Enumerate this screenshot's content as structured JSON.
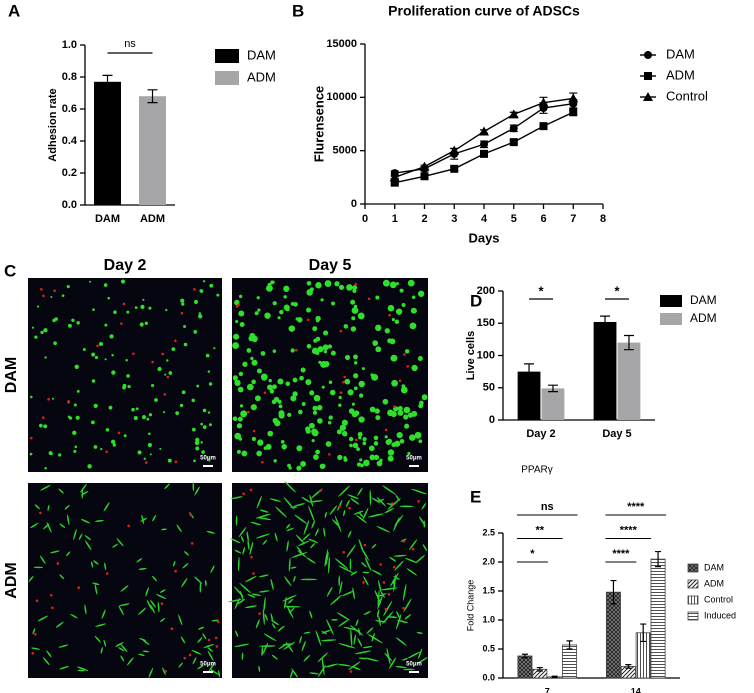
{
  "chart_data": [
    {
      "type": "bar",
      "panel_label": "A",
      "categories": [
        "DAM",
        "ADM"
      ],
      "values": [
        0.77,
        0.68
      ],
      "errors": [
        0.04,
        0.04
      ],
      "colors": [
        "#000000",
        "#a6a6a8"
      ],
      "ylabel": "Adhesion rate",
      "ylim": [
        0,
        1
      ],
      "yticks": [
        {
          "value": 0,
          "label": "0.0"
        },
        0.2,
        0.4,
        0.6,
        0.8,
        {
          "value": 1,
          "label": "1.0"
        }
      ],
      "legend": "right",
      "annotations": [
        "ns"
      ]
    },
    {
      "type": "line",
      "panel_label": "B",
      "title": "Proliferation curve of ADSCs",
      "x": [
        1,
        2,
        3,
        4,
        5,
        6,
        7
      ],
      "xlabel": "Days",
      "ylabel": "Flurensence",
      "xlim": [
        0,
        8
      ],
      "xticks": [
        0,
        1,
        2,
        3,
        4,
        5,
        6,
        7,
        8
      ],
      "ylim": [
        0,
        15000
      ],
      "yticks": [
        0,
        5000,
        10000,
        15000
      ],
      "legend": "right",
      "series": [
        {
          "name": "DAM",
          "color": "#000000",
          "marker": "circle",
          "values": [
            2900,
            3300,
            4700,
            5600,
            7100,
            9000,
            9400
          ],
          "errors": [
            200,
            200,
            500,
            300,
            300,
            500,
            400
          ]
        },
        {
          "name": "ADM",
          "color": "#000000",
          "marker": "square",
          "values": [
            2000,
            2600,
            3300,
            4700,
            5800,
            7300,
            8600
          ],
          "errors": [
            100,
            150,
            150,
            200,
            150,
            200,
            200
          ]
        },
        {
          "name": "Control",
          "color": "#000000",
          "marker": "triangle",
          "values": [
            2500,
            3500,
            5000,
            6800,
            8400,
            9500,
            9900
          ],
          "errors": [
            100,
            150,
            200,
            150,
            200,
            500,
            500
          ]
        }
      ]
    },
    {
      "type": "bar",
      "panel_label": "D",
      "categories": [
        "Day 2",
        "Day 5"
      ],
      "ylabel": "Live cells",
      "ylim": [
        0,
        200
      ],
      "yticks": [
        0,
        50,
        100,
        150,
        200
      ],
      "legend": "right",
      "series": [
        {
          "name": "DAM",
          "color": "#000000",
          "values": [
            75,
            152
          ],
          "errors": [
            12,
            9
          ]
        },
        {
          "name": "ADM",
          "color": "#a6a6a8",
          "values": [
            49,
            120
          ],
          "errors": [
            5,
            11
          ]
        }
      ],
      "annotations": [
        "*",
        "*"
      ]
    },
    {
      "type": "bar",
      "panel_label": "E",
      "title": "PPARγ",
      "categories": [
        "7",
        "14"
      ],
      "ylabel": "Fold Change",
      "ylim": [
        0,
        2.5
      ],
      "yticks": [
        {
          "value": 0,
          "label": "0.0"
        },
        0.5,
        {
          "value": 1,
          "label": "1.0"
        },
        1.5,
        {
          "value": 2,
          "label": "2.0"
        },
        2.5
      ],
      "legend": "right",
      "series": [
        {
          "name": "DAM",
          "color": "#444444",
          "pattern": "crosshatch",
          "values": [
            0.38,
            1.48
          ],
          "errors": [
            0.03,
            0.2
          ]
        },
        {
          "name": "ADM",
          "color": "#444444",
          "pattern": "diagonal",
          "values": [
            0.15,
            0.2
          ],
          "errors": [
            0.03,
            0.03
          ]
        },
        {
          "name": "Control",
          "color": "#444444",
          "pattern": "vertical",
          "values": [
            0.02,
            0.78
          ],
          "errors": [
            0.01,
            0.15
          ]
        },
        {
          "name": "Induced",
          "color": "#444444",
          "pattern": "horizontal",
          "values": [
            0.57,
            2.05
          ],
          "errors": [
            0.07,
            0.13
          ]
        }
      ],
      "annotations": [
        [
          "ns",
          "**",
          "*"
        ],
        [
          "****",
          "****",
          "****"
        ]
      ]
    }
  ],
  "panel_c": {
    "panel_label": "C",
    "columns": [
      "Day 2",
      "Day 5"
    ],
    "rows": [
      "DAM",
      "ADM"
    ],
    "scale_bar": "50μm"
  }
}
